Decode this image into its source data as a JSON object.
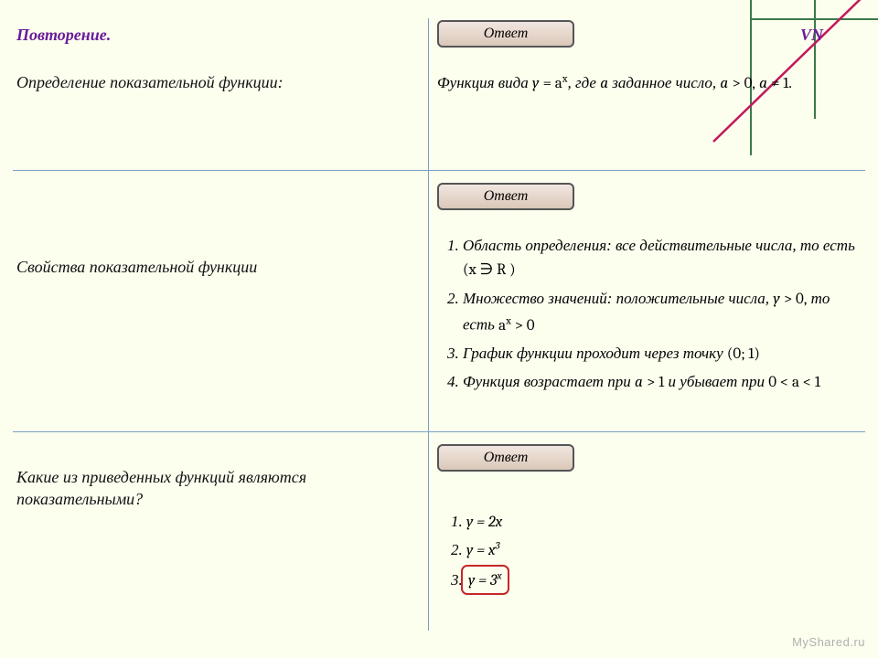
{
  "page": {
    "background_color": "#fcfeee",
    "accent_color": "#6a1b9a",
    "grid_line_color": "#7aa0c4",
    "corner_line_color": "#3a7a4a",
    "diagonal_color": "#c2185b",
    "highlight_border_color": "#c62828"
  },
  "header": {
    "title": "Повторение.",
    "logo_text": "VN"
  },
  "button_label": "Ответ",
  "rows": [
    {
      "prompt": "Определение показательной функции:",
      "answer_html": "Функция вида <span class='mathit'>y</span> <span class='math'>= a<sup>x</sup></span>, где <span class='mathit'>a</span> заданное число, <span class='mathit'>a</span> <span class='math'>&gt; 0,</span> <span class='mathit'>a</span> <span class='math'>≠ 1.</span>"
    },
    {
      "prompt": "Свойства показательной функции",
      "props": [
        "Область определения: все действительные числа, то есть <span class='math'>(x ∋ R )</span>",
        "Множество значений: положительные числа, <span class='mathit'>y</span> <span class='math'>&gt; 0,</span> то есть <span class='math'>a<sup>x</sup> &gt; 0</span>",
        "График функции проходит через точку <span class='math'>(0; 1)</span>",
        "Функция возрастает при <span class='mathit'>a</span> <span class='math'>&gt; 1</span> и убывает при <span class='math'>0 &lt; a &lt; 1</span>"
      ]
    },
    {
      "prompt": "Какие из приведенных функций являются показательными?",
      "funcs": [
        {
          "text": "y = 2x",
          "highlight": false
        },
        {
          "text": "y = x<sup>3</sup>",
          "highlight": false
        },
        {
          "text": "y = 3<sup>x</sup>",
          "highlight": true
        }
      ]
    }
  ],
  "watermark": "MyShared.ru"
}
